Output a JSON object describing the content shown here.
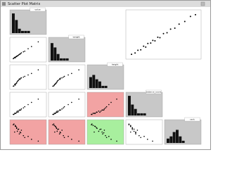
{
  "window": {
    "title": "Scatter Plot Matrix"
  },
  "chart_data": {
    "type": "scatter_matrix",
    "variables": [
      {
        "name": "value",
        "lim": [
          0,
          50
        ],
        "values": [
          5,
          8,
          12,
          3,
          20,
          15,
          7,
          9,
          30,
          11,
          6,
          14,
          4,
          18,
          10,
          25,
          8,
          13,
          40,
          6
        ]
      },
      {
        "name": "weight",
        "lim": [
          0,
          70
        ],
        "values": [
          10,
          14,
          20,
          6,
          30,
          25,
          12,
          15,
          45,
          18,
          9,
          22,
          8,
          28,
          16,
          38,
          13,
          21,
          60,
          11
        ]
      },
      {
        "name": "height",
        "lim": [
          30,
          90
        ],
        "values": [
          40,
          45,
          55,
          35,
          62,
          58,
          42,
          48,
          70,
          52,
          38,
          57,
          36,
          60,
          50,
          66,
          44,
          54,
          80,
          41
        ]
      },
      {
        "name": "balance_score",
        "lim": [
          0,
          20
        ],
        "values": [
          2,
          3,
          5,
          1,
          8,
          6,
          2,
          4,
          12,
          4,
          2,
          5,
          1,
          7,
          3,
          10,
          3,
          5,
          15,
          2
        ]
      },
      {
        "name": "rank",
        "lim": [
          20,
          80
        ],
        "values": [
          50,
          60,
          45,
          70,
          35,
          55,
          65,
          52,
          30,
          58,
          68,
          48,
          72,
          40,
          57,
          38,
          62,
          50,
          25,
          66
        ]
      }
    ],
    "histograms": [
      {
        "counts": [
          9,
          6,
          2,
          1,
          1,
          1
        ],
        "ylim": [
          0,
          10
        ]
      },
      {
        "counts": [
          8,
          6,
          3,
          1,
          1,
          1
        ],
        "ylim": [
          0,
          10
        ]
      },
      {
        "counts": [
          5,
          6,
          4,
          3,
          1,
          1
        ],
        "ylim": [
          0,
          10
        ]
      },
      {
        "counts": [
          9,
          5,
          3,
          1,
          1,
          1
        ],
        "ylim": [
          0,
          10
        ]
      },
      {
        "counts": [
          2,
          3,
          5,
          6,
          3,
          1
        ],
        "ylim": [
          0,
          10
        ]
      }
    ],
    "hist_background": "#c8c8c8",
    "point_color": "#000000",
    "cell_colors": [
      [
        null,
        null,
        null,
        null,
        null
      ],
      [
        null,
        null,
        null,
        null,
        null
      ],
      [
        null,
        null,
        null,
        null,
        null
      ],
      [
        null,
        null,
        "#f2a3a3",
        null,
        null
      ],
      [
        "#f2a3a3",
        "#f2a3a3",
        "#a8ef9e",
        null,
        null
      ]
    ],
    "overview": {
      "xlim": [
        0,
        100
      ],
      "ylim": [
        0,
        100
      ],
      "x": [
        5,
        10,
        14,
        18,
        22,
        25,
        28,
        32,
        35,
        38,
        42,
        45,
        50,
        55,
        60,
        66,
        72,
        80,
        88,
        95
      ],
      "y": [
        6,
        9,
        15,
        16,
        24,
        22,
        30,
        31,
        37,
        36,
        44,
        43,
        52,
        54,
        62,
        64,
        73,
        79,
        90,
        94
      ]
    }
  }
}
